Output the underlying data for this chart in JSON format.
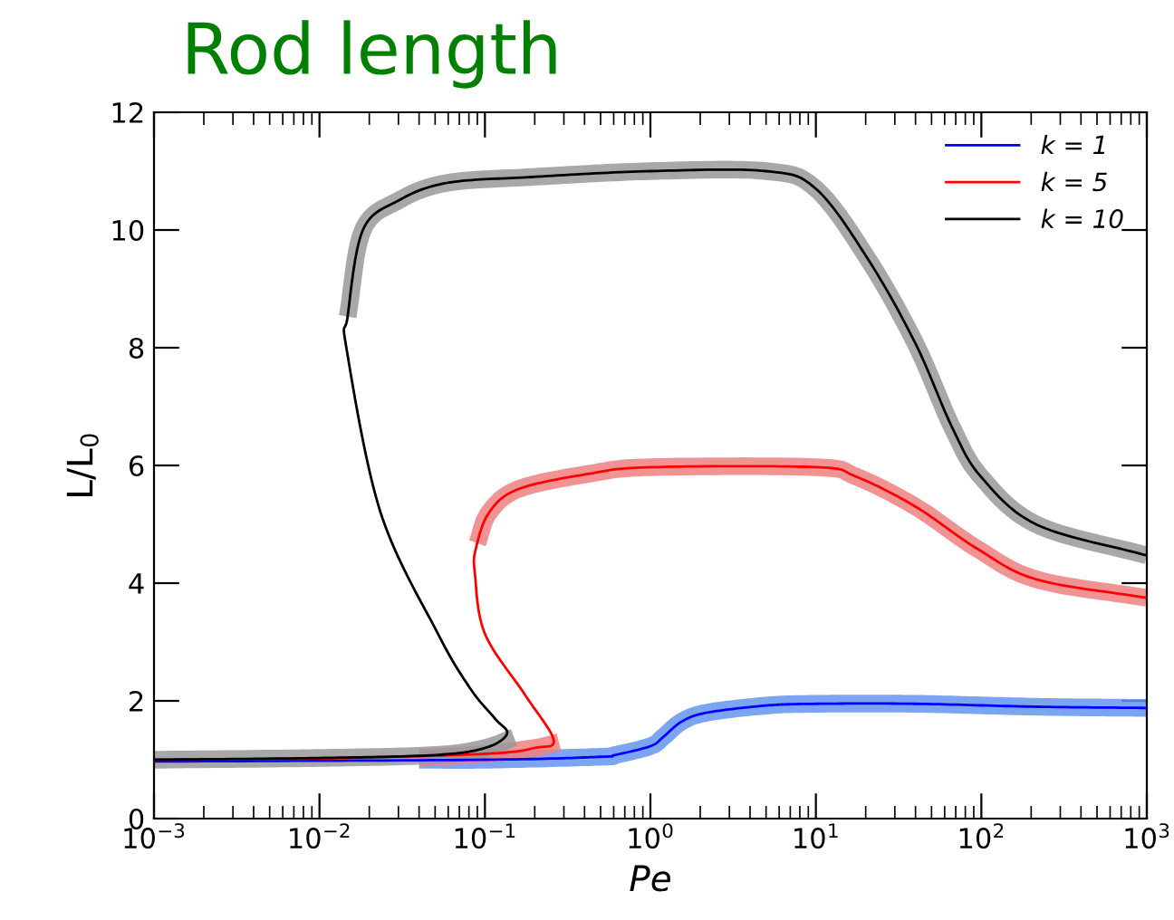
{
  "chart_data": {
    "type": "line",
    "title": "Rod length",
    "xlabel": "Pe",
    "ylabel": "L/L$_{0}$",
    "log": "x",
    "grid": false,
    "legend": "top right",
    "xlim": [
      0.001,
      1000
    ],
    "xticks": [
      {
        "value": 0.001,
        "label": "10$^{−3}$"
      },
      {
        "value": 0.01,
        "label": "10$^{−2}$"
      },
      {
        "value": 0.1,
        "label": "10$^{−1}$"
      },
      {
        "value": 1,
        "label": "10$^{0}$"
      },
      {
        "value": 10,
        "label": "10$^{1}$"
      },
      {
        "value": 100,
        "label": "10$^{2}$"
      },
      {
        "value": 1000,
        "label": "10$^{3}$"
      }
    ],
    "ylim": [
      0,
      12
    ],
    "yticks": [
      0,
      2,
      4,
      6,
      8,
      10,
      12
    ],
    "series": [
      {
        "color": "#6495ed",
        "x": [
          0.04,
          0.1,
          0.5,
          0.61,
          1,
          1.2,
          1.55,
          2.2,
          5,
          10,
          40,
          218,
          1000
        ],
        "values": [
          1.0,
          1.0,
          1.05,
          1.08,
          1.23,
          1.39,
          1.65,
          1.8,
          1.92,
          1.95,
          1.95,
          1.9,
          1.88
        ]
      },
      {
        "color": "#f08080",
        "x": [
          0.04,
          0.1,
          0.2,
          0.28
        ],
        "values": [
          1.03,
          1.1,
          1.2,
          1.3
        ]
      },
      {
        "color": "#f08080",
        "x": [
          0.09,
          0.106,
          0.16,
          0.43,
          1,
          10,
          17.5,
          40,
          95,
          218,
          1000
        ],
        "values": [
          4.68,
          5.2,
          5.6,
          5.86,
          5.97,
          5.97,
          5.81,
          5.3,
          4.58,
          4.06,
          3.75
        ]
      },
      {
        "color": "#999999",
        "x": [
          0.001,
          0.01,
          0.05,
          0.1,
          0.15
        ],
        "values": [
          1.0,
          1.03,
          1.08,
          1.2,
          1.38
        ]
      },
      {
        "color": "#999999",
        "x": [
          0.0148,
          0.0183,
          0.03,
          0.059,
          0.19,
          1,
          5,
          10,
          20.7,
          40,
          67,
          100,
          218,
          1000
        ],
        "values": [
          8.53,
          10.0,
          10.5,
          10.8,
          10.9,
          11.0,
          11.0,
          10.7,
          9.5,
          8.07,
          6.63,
          5.8,
          4.99,
          4.47
        ]
      },
      {
        "name": "k = 1",
        "color": "#0000ff",
        "x": [
          0.001,
          0.1,
          0.5,
          0.61,
          1,
          1.2,
          1.55,
          2.2,
          5,
          10,
          40,
          218,
          1000
        ],
        "values": [
          0.97,
          1.0,
          1.05,
          1.08,
          1.23,
          1.39,
          1.65,
          1.8,
          1.92,
          1.95,
          1.95,
          1.9,
          1.88
        ]
      },
      {
        "name": "k = 5",
        "color": "#ff0000",
        "x": [
          0.001,
          0.01,
          0.1,
          0.2,
          0.26,
          0.175,
          0.1,
          0.087,
          0.088,
          0.106,
          0.16,
          0.43,
          1,
          10,
          17.5,
          40,
          95,
          218,
          1000
        ],
        "values": [
          1.0,
          1.02,
          1.1,
          1.2,
          1.34,
          2.1,
          3.14,
          4.16,
          4.58,
          5.2,
          5.6,
          5.86,
          5.97,
          5.97,
          5.81,
          5.3,
          4.58,
          4.06,
          3.75
        ]
      },
      {
        "name": "k = 10",
        "color": "#000000",
        "x": [
          0.001,
          0.01,
          0.05,
          0.1,
          0.136,
          0.115,
          0.082,
          0.052,
          0.0234,
          0.0146,
          0.0148,
          0.0183,
          0.03,
          0.059,
          0.19,
          1,
          5,
          10,
          20.7,
          40,
          67,
          100,
          218,
          1000
        ],
        "values": [
          1.0,
          1.03,
          1.08,
          1.2,
          1.44,
          1.7,
          2.2,
          3.14,
          5.2,
          7.97,
          8.53,
          10.0,
          10.5,
          10.8,
          10.9,
          11.0,
          11.0,
          10.7,
          9.5,
          8.07,
          6.63,
          5.8,
          4.99,
          4.47
        ]
      }
    ]
  }
}
